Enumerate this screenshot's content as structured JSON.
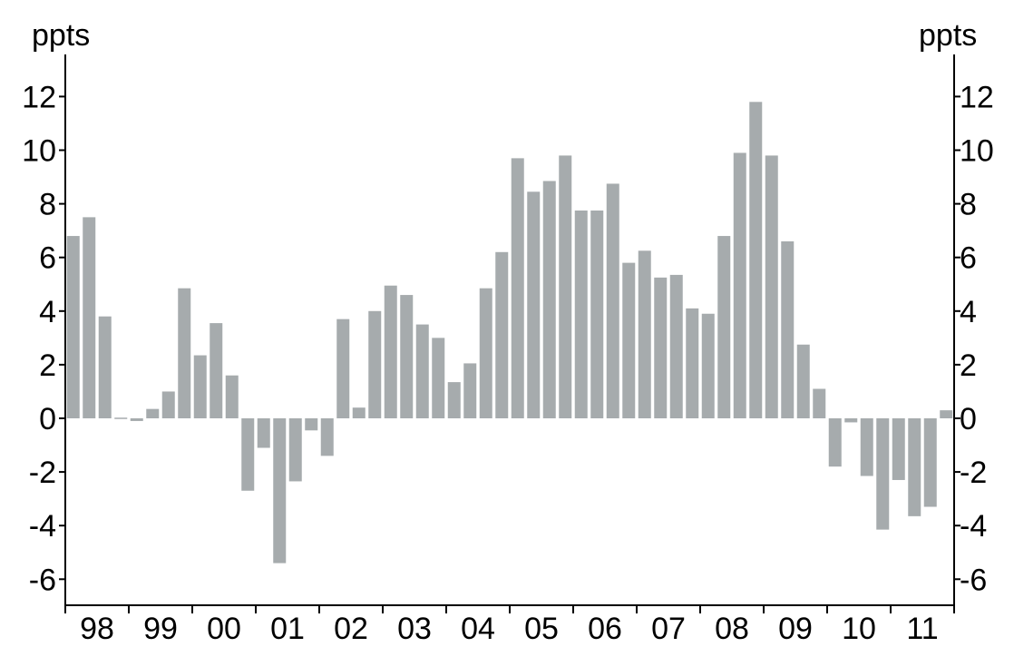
{
  "chart_data": {
    "type": "bar",
    "title": "",
    "ylabel_left": "ppts",
    "ylabel_right": "ppts",
    "ylim": [
      -7,
      13.2
    ],
    "yticks": [
      12,
      10,
      8,
      6,
      4,
      2,
      0,
      -2,
      -4,
      -6
    ],
    "ytick_labels": [
      "12",
      "10",
      "8",
      "6",
      "4",
      "2",
      "0",
      "-2",
      "-4",
      "-6"
    ],
    "xtick_labels": [
      "98",
      "99",
      "00",
      "01",
      "02",
      "03",
      "04",
      "05",
      "06",
      "07",
      "08",
      "09",
      "10",
      "11"
    ],
    "periods_per_label": 4,
    "grid": false,
    "bar_color": "#a6abad",
    "axis_color": "#000000",
    "values": [
      6.8,
      7.5,
      3.8,
      0.0,
      -0.1,
      0.35,
      1.0,
      4.85,
      2.35,
      3.55,
      1.6,
      -2.7,
      -1.1,
      -5.4,
      -2.35,
      -0.45,
      -1.4,
      3.7,
      0.4,
      4.0,
      4.95,
      4.6,
      3.5,
      3.0,
      1.35,
      2.05,
      4.85,
      6.2,
      9.7,
      8.45,
      8.85,
      9.8,
      7.75,
      7.75,
      8.75,
      5.8,
      6.25,
      5.25,
      5.35,
      4.1,
      3.9,
      6.8,
      9.9,
      11.8,
      9.8,
      6.6,
      2.75,
      1.1,
      -1.8,
      -0.15,
      -2.15,
      -4.15,
      -2.3,
      -3.65,
      -3.3,
      0.3
    ]
  }
}
